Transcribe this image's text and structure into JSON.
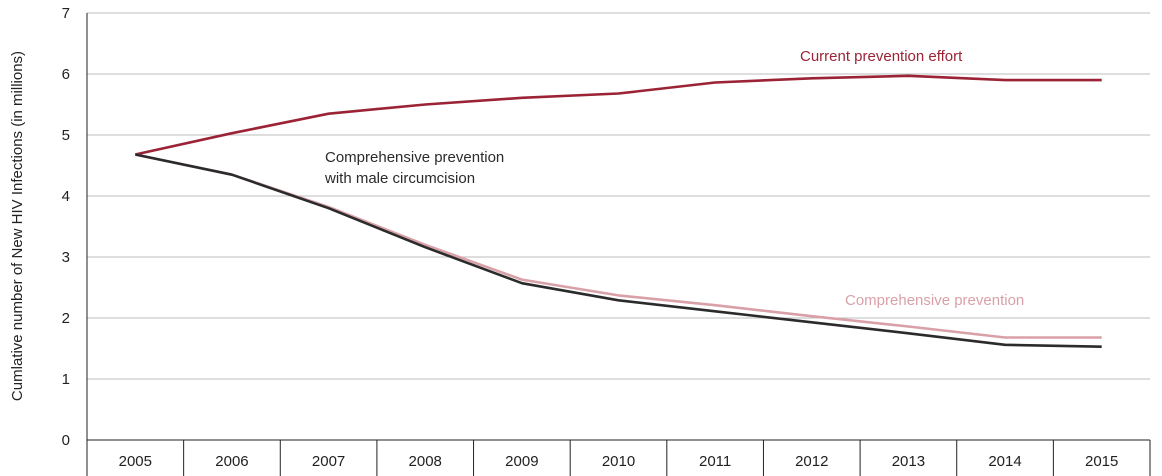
{
  "chart_data": {
    "type": "line",
    "title": "",
    "xlabel": "",
    "ylabel": "Cumlative number of New HIV Infections (in millions)",
    "x": [
      "2005",
      "2006",
      "2007",
      "2008",
      "2009",
      "2010",
      "2011",
      "2012",
      "2013",
      "2014",
      "2015"
    ],
    "yticks": [
      "0",
      "1",
      "2",
      "3",
      "4",
      "5",
      "6",
      "7"
    ],
    "ylim": [
      0,
      7
    ],
    "grid": "horizontal",
    "series": [
      {
        "name": "Current prevention effort",
        "color": "#9b2335",
        "values": [
          4.68,
          5.03,
          5.35,
          5.5,
          5.61,
          5.68,
          5.86,
          5.93,
          5.97,
          5.9,
          5.9
        ]
      },
      {
        "name": "Comprehensive prevention",
        "color": "#d9a0a8",
        "values": [
          4.68,
          4.35,
          3.82,
          3.2,
          2.63,
          2.37,
          2.21,
          2.03,
          1.86,
          1.68,
          1.68
        ]
      },
      {
        "name": "Comprehensive prevention with male circumcision",
        "color": "#2b2b2b",
        "values": [
          4.68,
          4.35,
          3.8,
          3.16,
          2.57,
          2.29,
          2.11,
          1.93,
          1.75,
          1.56,
          1.53
        ]
      }
    ],
    "annotations": [
      {
        "series": 0,
        "lines": [
          "Current prevention effort"
        ]
      },
      {
        "series": 1,
        "lines": [
          "Comprehensive prevention"
        ]
      },
      {
        "series": 2,
        "lines": [
          "Comprehensive prevention",
          "with male circumcision"
        ]
      }
    ]
  }
}
